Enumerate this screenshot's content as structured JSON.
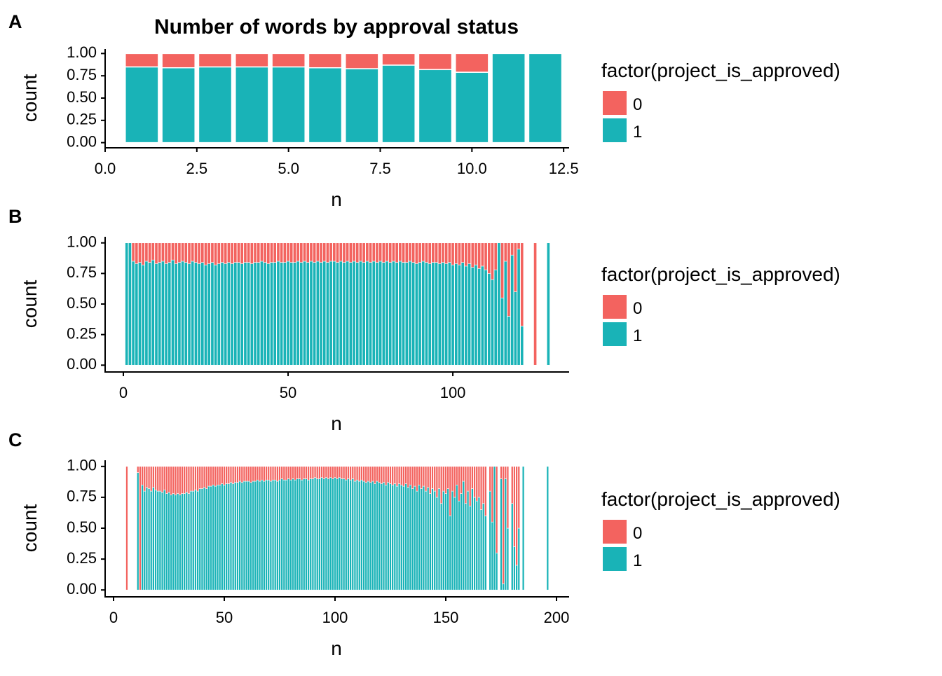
{
  "chart_data": [
    {
      "type": "bar",
      "stacked": true,
      "panel": "A",
      "title": "Number of words by approval status",
      "x_label": "n",
      "y_label": "count",
      "legend_title": "factor(project_is_approved)",
      "x": [
        1,
        2,
        3,
        4,
        5,
        6,
        7,
        8,
        9,
        10,
        11,
        12
      ],
      "series": [
        {
          "name": "0",
          "color": "#F3635F",
          "values": [
            0.15,
            0.16,
            0.15,
            0.15,
            0.15,
            0.16,
            0.17,
            0.13,
            0.18,
            0.21,
            0,
            0
          ]
        },
        {
          "name": "1",
          "color": "#19B3B7",
          "values": [
            0.85,
            0.84,
            0.85,
            0.85,
            0.85,
            0.84,
            0.83,
            0.87,
            0.82,
            0.79,
            1,
            1
          ]
        }
      ],
      "xlim": [
        0,
        12.65
      ],
      "ylim": [
        -0.05,
        1.05
      ],
      "xticks": [
        {
          "value": 0,
          "label": "0.0"
        },
        2.5,
        {
          "value": 5,
          "label": "5.0"
        },
        7.5,
        {
          "value": 10,
          "label": "10.0"
        },
        12.5
      ],
      "yticks": [
        {
          "value": 0,
          "label": "0.00"
        },
        0.25,
        {
          "value": 0.5,
          "label": "0.50"
        },
        0.75,
        {
          "value": 1,
          "label": "1.00"
        }
      ]
    },
    {
      "type": "bar",
      "stacked": true,
      "panel": "B",
      "x_label": "n",
      "y_label": "count",
      "legend_title": "factor(project_is_approved)",
      "x": [
        1,
        2,
        3,
        4,
        5,
        6,
        7,
        8,
        9,
        10,
        11,
        12,
        13,
        14,
        15,
        16,
        17,
        18,
        19,
        20,
        21,
        22,
        23,
        24,
        25,
        26,
        27,
        28,
        29,
        30,
        31,
        32,
        33,
        34,
        35,
        36,
        37,
        38,
        39,
        40,
        41,
        42,
        43,
        44,
        45,
        46,
        47,
        48,
        49,
        50,
        51,
        52,
        53,
        54,
        55,
        56,
        57,
        58,
        59,
        60,
        61,
        62,
        63,
        64,
        65,
        66,
        67,
        68,
        69,
        70,
        71,
        72,
        73,
        74,
        75,
        76,
        77,
        78,
        79,
        80,
        81,
        82,
        83,
        84,
        85,
        86,
        87,
        88,
        89,
        90,
        91,
        92,
        93,
        94,
        95,
        96,
        97,
        98,
        99,
        100,
        101,
        102,
        103,
        104,
        105,
        106,
        107,
        108,
        109,
        110,
        111,
        112,
        113,
        114,
        115,
        116,
        117,
        118,
        119,
        120,
        121,
        125,
        129
      ],
      "series": [
        {
          "name": "0",
          "color": "#F3635F",
          "values": [
            0,
            0,
            0.15,
            0.17,
            0.16,
            0.18,
            0.15,
            0.16,
            0.14,
            0.17,
            0.16,
            0.15,
            0.17,
            0.16,
            0.14,
            0.17,
            0.16,
            0.15,
            0.16,
            0.17,
            0.15,
            0.16,
            0.17,
            0.16,
            0.18,
            0.17,
            0.16,
            0.18,
            0.17,
            0.16,
            0.17,
            0.16,
            0.17,
            0.16,
            0.16,
            0.17,
            0.16,
            0.16,
            0.17,
            0.16,
            0.16,
            0.15,
            0.16,
            0.17,
            0.16,
            0.16,
            0.15,
            0.16,
            0.16,
            0.15,
            0.16,
            0.16,
            0.15,
            0.16,
            0.15,
            0.16,
            0.15,
            0.16,
            0.15,
            0.16,
            0.15,
            0.16,
            0.15,
            0.15,
            0.16,
            0.15,
            0.16,
            0.15,
            0.16,
            0.15,
            0.16,
            0.15,
            0.16,
            0.15,
            0.16,
            0.15,
            0.16,
            0.15,
            0.16,
            0.15,
            0.16,
            0.15,
            0.16,
            0.15,
            0.16,
            0.16,
            0.15,
            0.16,
            0.17,
            0.16,
            0.15,
            0.16,
            0.17,
            0.16,
            0.16,
            0.17,
            0.16,
            0.17,
            0.16,
            0.18,
            0.17,
            0.18,
            0.16,
            0.19,
            0.17,
            0.2,
            0.18,
            0.21,
            0.19,
            0.22,
            0.25,
            0.3,
            0.22,
            0,
            0.45,
            0.15,
            0.6,
            0.1,
            0.4,
            0.05,
            0.68,
            1,
            0
          ]
        },
        {
          "name": "1",
          "color": "#19B3B7",
          "values": [
            1,
            1,
            0.85,
            0.83,
            0.84,
            0.82,
            0.85,
            0.84,
            0.86,
            0.83,
            0.84,
            0.85,
            0.83,
            0.84,
            0.86,
            0.83,
            0.84,
            0.85,
            0.84,
            0.83,
            0.85,
            0.84,
            0.83,
            0.84,
            0.82,
            0.83,
            0.84,
            0.82,
            0.83,
            0.84,
            0.83,
            0.84,
            0.83,
            0.84,
            0.84,
            0.83,
            0.84,
            0.84,
            0.83,
            0.84,
            0.84,
            0.85,
            0.84,
            0.83,
            0.84,
            0.84,
            0.85,
            0.84,
            0.84,
            0.85,
            0.84,
            0.84,
            0.85,
            0.84,
            0.85,
            0.84,
            0.85,
            0.84,
            0.85,
            0.84,
            0.85,
            0.84,
            0.85,
            0.85,
            0.84,
            0.85,
            0.84,
            0.85,
            0.84,
            0.85,
            0.84,
            0.85,
            0.84,
            0.85,
            0.84,
            0.85,
            0.84,
            0.85,
            0.84,
            0.85,
            0.84,
            0.85,
            0.84,
            0.85,
            0.84,
            0.84,
            0.85,
            0.84,
            0.83,
            0.84,
            0.85,
            0.84,
            0.83,
            0.84,
            0.84,
            0.83,
            0.84,
            0.83,
            0.84,
            0.82,
            0.83,
            0.82,
            0.84,
            0.81,
            0.83,
            0.8,
            0.82,
            0.79,
            0.81,
            0.78,
            0.75,
            0.7,
            0.78,
            1,
            0.55,
            0.85,
            0.4,
            0.9,
            0.6,
            0.95,
            0.32,
            0,
            1
          ]
        }
      ],
      "xlim": [
        -5.53,
        135.3
      ],
      "ylim": [
        -0.05,
        1.05
      ],
      "xticks": [
        0,
        50,
        100
      ],
      "yticks": [
        {
          "value": 0,
          "label": "0.00"
        },
        0.25,
        {
          "value": 0.5,
          "label": "0.50"
        },
        0.75,
        {
          "value": 1,
          "label": "1.00"
        }
      ]
    },
    {
      "type": "bar",
      "stacked": true,
      "panel": "C",
      "x_label": "n",
      "y_label": "count",
      "legend_title": "factor(project_is_approved)",
      "x": [
        6,
        11,
        12,
        13,
        14,
        15,
        16,
        17,
        18,
        19,
        20,
        21,
        22,
        23,
        24,
        25,
        26,
        27,
        28,
        29,
        30,
        31,
        32,
        33,
        34,
        35,
        36,
        37,
        38,
        39,
        40,
        41,
        42,
        43,
        44,
        45,
        46,
        47,
        48,
        49,
        50,
        51,
        52,
        53,
        54,
        55,
        56,
        57,
        58,
        59,
        60,
        61,
        62,
        63,
        64,
        65,
        66,
        67,
        68,
        69,
        70,
        71,
        72,
        73,
        74,
        75,
        76,
        77,
        78,
        79,
        80,
        81,
        82,
        83,
        84,
        85,
        86,
        87,
        88,
        89,
        90,
        91,
        92,
        93,
        94,
        95,
        96,
        97,
        98,
        99,
        100,
        101,
        102,
        103,
        104,
        105,
        106,
        107,
        108,
        109,
        110,
        111,
        112,
        113,
        114,
        115,
        116,
        117,
        118,
        119,
        120,
        121,
        122,
        123,
        124,
        125,
        126,
        127,
        128,
        129,
        130,
        131,
        132,
        133,
        134,
        135,
        136,
        137,
        138,
        139,
        140,
        141,
        142,
        143,
        144,
        145,
        146,
        147,
        148,
        149,
        150,
        151,
        152,
        153,
        154,
        155,
        156,
        157,
        158,
        159,
        160,
        161,
        162,
        163,
        164,
        165,
        166,
        167,
        168,
        170,
        171,
        172,
        173,
        175,
        176,
        177,
        178,
        180,
        181,
        182,
        183,
        185,
        196
      ],
      "series": [
        {
          "name": "0",
          "color": "#F3635F",
          "values": [
            1,
            0.05,
            1,
            0.15,
            0.2,
            0.17,
            0.18,
            0.2,
            0.17,
            0.19,
            0.2,
            0.2,
            0.21,
            0.19,
            0.22,
            0.21,
            0.23,
            0.22,
            0.23,
            0.22,
            0.23,
            0.22,
            0.22,
            0.21,
            0.22,
            0.2,
            0.2,
            0.19,
            0.2,
            0.18,
            0.18,
            0.17,
            0.18,
            0.16,
            0.16,
            0.15,
            0.16,
            0.15,
            0.15,
            0.14,
            0.15,
            0.14,
            0.14,
            0.13,
            0.14,
            0.13,
            0.13,
            0.12,
            0.13,
            0.12,
            0.12,
            0.12,
            0.13,
            0.12,
            0.12,
            0.11,
            0.12,
            0.11,
            0.12,
            0.11,
            0.11,
            0.12,
            0.11,
            0.11,
            0.12,
            0.11,
            0.1,
            0.11,
            0.11,
            0.1,
            0.11,
            0.1,
            0.11,
            0.1,
            0.1,
            0.11,
            0.1,
            0.1,
            0.11,
            0.1,
            0.1,
            0.09,
            0.1,
            0.1,
            0.09,
            0.1,
            0.09,
            0.1,
            0.09,
            0.1,
            0.09,
            0.1,
            0.09,
            0.1,
            0.1,
            0.11,
            0.1,
            0.11,
            0.1,
            0.12,
            0.11,
            0.12,
            0.11,
            0.12,
            0.13,
            0.12,
            0.13,
            0.12,
            0.14,
            0.12,
            0.13,
            0.14,
            0.13,
            0.15,
            0.13,
            0.14,
            0.15,
            0.14,
            0.16,
            0.14,
            0.15,
            0.16,
            0.14,
            0.17,
            0.15,
            0.18,
            0.16,
            0.2,
            0.15,
            0.18,
            0.16,
            0.2,
            0.17,
            0.22,
            0.18,
            0.2,
            0.25,
            0.18,
            0.3,
            0.2,
            0.22,
            0.18,
            0.4,
            0.2,
            0.25,
            0.15,
            0.28,
            0.22,
            0.12,
            0.3,
            0.2,
            0.32,
            0.18,
            0.25,
            0.28,
            0.25,
            0.35,
            0.3,
            0.4,
            0.2,
            0.45,
            0,
            0.7,
            0.1,
            0.95,
            0.1,
            0.5,
            0.3,
            0.65,
            0.8,
            0.5,
            0,
            0
          ]
        },
        {
          "name": "1",
          "color": "#19B3B7",
          "values": [
            0,
            0.95,
            0,
            0.85,
            0.8,
            0.83,
            0.82,
            0.8,
            0.83,
            0.81,
            0.8,
            0.8,
            0.79,
            0.81,
            0.78,
            0.79,
            0.77,
            0.78,
            0.77,
            0.78,
            0.77,
            0.78,
            0.78,
            0.79,
            0.78,
            0.8,
            0.8,
            0.81,
            0.8,
            0.82,
            0.82,
            0.83,
            0.82,
            0.84,
            0.84,
            0.85,
            0.84,
            0.85,
            0.85,
            0.86,
            0.85,
            0.86,
            0.86,
            0.87,
            0.86,
            0.87,
            0.87,
            0.88,
            0.87,
            0.88,
            0.88,
            0.88,
            0.87,
            0.88,
            0.88,
            0.89,
            0.88,
            0.89,
            0.88,
            0.89,
            0.89,
            0.88,
            0.89,
            0.89,
            0.88,
            0.89,
            0.9,
            0.89,
            0.89,
            0.9,
            0.89,
            0.9,
            0.89,
            0.9,
            0.9,
            0.89,
            0.9,
            0.9,
            0.89,
            0.9,
            0.9,
            0.91,
            0.9,
            0.9,
            0.91,
            0.9,
            0.91,
            0.9,
            0.91,
            0.9,
            0.91,
            0.9,
            0.91,
            0.9,
            0.9,
            0.89,
            0.9,
            0.89,
            0.9,
            0.88,
            0.89,
            0.88,
            0.89,
            0.88,
            0.87,
            0.88,
            0.87,
            0.88,
            0.86,
            0.88,
            0.87,
            0.86,
            0.87,
            0.85,
            0.87,
            0.86,
            0.85,
            0.86,
            0.84,
            0.86,
            0.85,
            0.84,
            0.86,
            0.83,
            0.85,
            0.82,
            0.84,
            0.8,
            0.85,
            0.82,
            0.84,
            0.8,
            0.83,
            0.78,
            0.82,
            0.8,
            0.75,
            0.82,
            0.7,
            0.8,
            0.78,
            0.82,
            0.6,
            0.8,
            0.75,
            0.85,
            0.72,
            0.78,
            0.88,
            0.7,
            0.8,
            0.68,
            0.82,
            0.75,
            0.72,
            0.75,
            0.65,
            0.7,
            0.6,
            0.8,
            0.55,
            1,
            0.3,
            0.9,
            0.05,
            0.9,
            0.5,
            0.7,
            0.35,
            0.2,
            0.5,
            1,
            1
          ]
        }
      ],
      "xlim": [
        -3.8,
        205.7
      ],
      "ylim": [
        -0.05,
        1.05
      ],
      "xticks": [
        0,
        50,
        100,
        150,
        200
      ],
      "yticks": [
        {
          "value": 0,
          "label": "0.00"
        },
        0.25,
        {
          "value": 0.5,
          "label": "0.50"
        },
        0.75,
        {
          "value": 1,
          "label": "1.00"
        }
      ]
    }
  ]
}
